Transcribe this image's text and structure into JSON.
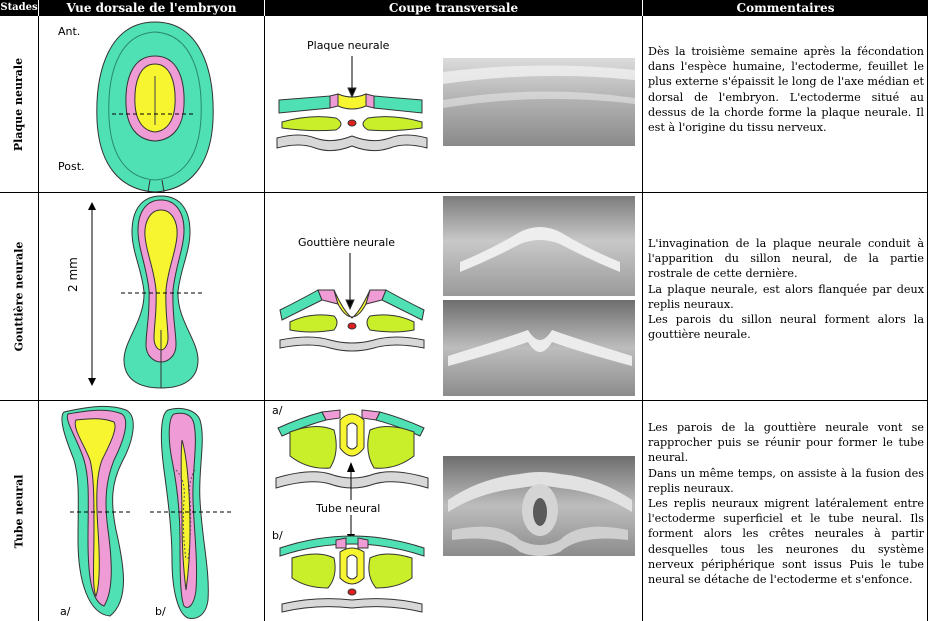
{
  "headers": {
    "stages": "Stades",
    "dorsal": "Vue dorsale de l'embryon",
    "section": "Coupe transversale",
    "comments": "Commentaires"
  },
  "rows": [
    {
      "stage": "Plaque neurale",
      "dorsal_labels": {
        "ant": "Ant.",
        "post": "Post."
      },
      "section_label": "Plaque neurale",
      "comment": [
        "Dès la troisième semaine après la fécondation dans l'espèce humaine, l'ectoderme, feuillet le plus externe s'épaissit le long de l'axe médian et dorsal de l'embryon. L'ectoderme situé au dessus de la chorde forme la plaque neurale. Il est à l'origine du tissu nerveux."
      ]
    },
    {
      "stage": "Gouttière neurale",
      "scale": "2 mm",
      "section_label": "Gouttière neurale",
      "comment": [
        "L'invagination de la plaque neurale conduit à l'apparition du sillon neural, de la partie rostrale de cette dernière.",
        "La plaque neurale, est alors flanquée par deux replis neuraux.",
        "Les parois du sillon neural forment alors la gouttière neurale."
      ]
    },
    {
      "stage": "Tube neural",
      "dorsal_labels": {
        "a": "a/",
        "b": "b/"
      },
      "section_labels": {
        "a": "a/",
        "b": "b/",
        "tube": "Tube neural"
      },
      "comment": [
        "Les parois de la gouttière neurale vont se rapprocher puis se réunir pour former le tube neural.",
        "Dans un même temps, on assiste à la fusion des replis neuraux.",
        "Les replis neuraux migrent latéralement entre l'ectoderme superficiel et le tube neural. Ils forment alors les crêtes neurales à partir desquelles tous les neurones du système nerveux périphérique sont issus Puis le tube neural se détache de l'ectoderme et s'enfonce."
      ]
    }
  ],
  "colors": {
    "ectoderm": "#4fe0b4",
    "neural": "#ee9bd6",
    "plate": "#f7f530",
    "mesoderm": "#c8ef2a",
    "chord": "#e02020",
    "endoderm": "#d8d8d8"
  }
}
